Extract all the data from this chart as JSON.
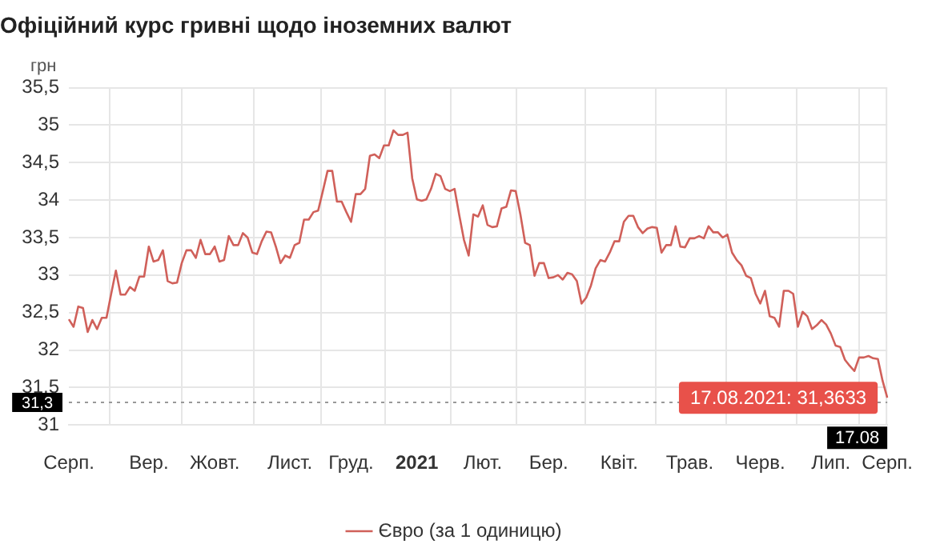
{
  "chart_data": {
    "type": "line",
    "title": "Офіційний курс гривні щодо іноземних валют",
    "ylabel": "грн",
    "categories": [
      "Серп.",
      null,
      null,
      null,
      null,
      null,
      null,
      null,
      null,
      null,
      null,
      null,
      null,
      null,
      null,
      null,
      null,
      "Вер.",
      null,
      null,
      null,
      null,
      null,
      null,
      null,
      null,
      null,
      null,
      null,
      null,
      null,
      "Жовт.",
      null,
      null,
      null,
      null,
      null,
      null,
      null,
      null,
      null,
      null,
      null,
      null,
      null,
      null,
      null,
      "Лист.",
      null,
      null,
      null,
      null,
      null,
      null,
      null,
      null,
      null,
      null,
      null,
      null,
      "Груд.",
      null,
      null,
      null,
      null,
      null,
      null,
      null,
      null,
      null,
      null,
      null,
      null,
      null,
      "2021",
      null,
      null,
      null,
      null,
      null,
      null,
      null,
      null,
      null,
      null,
      null,
      null,
      null,
      "Лют.",
      null,
      null,
      null,
      null,
      null,
      null,
      null,
      null,
      null,
      null,
      null,
      null,
      null,
      "Бер.",
      null,
      null,
      null,
      null,
      null,
      null,
      null,
      null,
      null,
      null,
      null,
      null,
      null,
      null,
      "Квіт.",
      null,
      null,
      null,
      null,
      null,
      null,
      null,
      null,
      null,
      null,
      null,
      null,
      null,
      null,
      "Трав.",
      null,
      null,
      null,
      null,
      null,
      null,
      null,
      null,
      null,
      null,
      null,
      null,
      null,
      null,
      "Черв.",
      null,
      null,
      null,
      null,
      null,
      null,
      null,
      null,
      null,
      null,
      null,
      null,
      null,
      null,
      "Лип.",
      null,
      null,
      null,
      null,
      null,
      null,
      null,
      null,
      null,
      null,
      null,
      "Серп."
    ],
    "series": [
      {
        "name": "Євро (за 1 одиницю)",
        "color": "#d0605a",
        "values": [
          32.41,
          32.31,
          32.58,
          32.56,
          32.24,
          32.4,
          32.28,
          32.43,
          32.43,
          32.75,
          33.06,
          32.74,
          32.74,
          32.84,
          32.79,
          32.98,
          32.98,
          33.38,
          33.18,
          33.2,
          33.33,
          32.92,
          32.89,
          32.9,
          33.16,
          33.33,
          33.33,
          33.23,
          33.47,
          33.28,
          33.28,
          33.38,
          33.18,
          33.2,
          33.52,
          33.4,
          33.4,
          33.56,
          33.5,
          33.3,
          33.28,
          33.45,
          33.58,
          33.57,
          33.38,
          33.16,
          33.26,
          33.23,
          33.4,
          33.43,
          33.74,
          33.74,
          33.84,
          33.86,
          34.12,
          34.39,
          34.39,
          33.98,
          33.98,
          33.84,
          33.71,
          34.08,
          34.08,
          34.15,
          34.59,
          34.61,
          34.56,
          34.73,
          34.73,
          34.93,
          34.87,
          34.87,
          34.9,
          34.29,
          34.01,
          33.99,
          34.01,
          34.15,
          34.35,
          34.32,
          34.15,
          34.12,
          34.15,
          33.8,
          33.47,
          33.26,
          33.81,
          33.78,
          33.93,
          33.67,
          33.64,
          33.65,
          33.89,
          33.91,
          34.13,
          34.12,
          33.81,
          33.43,
          33.4,
          32.99,
          33.16,
          33.16,
          32.96,
          32.97,
          33.0,
          32.94,
          33.03,
          33.01,
          32.92,
          32.62,
          32.7,
          32.86,
          33.09,
          33.2,
          33.18,
          33.3,
          33.45,
          33.45,
          33.71,
          33.79,
          33.79,
          33.64,
          33.56,
          33.62,
          33.64,
          33.63,
          33.3,
          33.4,
          33.4,
          33.65,
          33.38,
          33.37,
          33.49,
          33.49,
          33.52,
          33.49,
          33.65,
          33.57,
          33.57,
          33.5,
          33.54,
          33.3,
          33.2,
          33.13,
          32.99,
          32.96,
          32.75,
          32.62,
          32.79,
          32.45,
          32.43,
          32.31,
          32.79,
          32.79,
          32.75,
          32.31,
          32.51,
          32.45,
          32.28,
          32.33,
          32.4,
          32.34,
          32.22,
          32.06,
          32.04,
          31.87,
          31.79,
          31.72,
          31.9,
          31.9,
          31.92,
          31.89,
          31.88,
          31.59,
          31.3633
        ]
      }
    ],
    "ylim": [
      31,
      35.5
    ],
    "yticks": [
      31,
      {
        "value": 31.5,
        "label": "31,5"
      },
      32,
      {
        "value": 32.5,
        "label": "32,5"
      },
      33,
      {
        "value": 33.5,
        "label": "33,5"
      },
      34,
      {
        "value": 34.5,
        "label": "34,5"
      },
      35,
      {
        "value": 35.5,
        "label": "35,5"
      }
    ],
    "grid": true,
    "legend": "bottom",
    "marker": "none",
    "line_style": "solid",
    "ref_lines": [
      {
        "axis": "y",
        "value": 31.3,
        "label": "31,3",
        "line_style": "dotted"
      }
    ],
    "annotations": [
      "17.08.2021: 31,3633",
      "17.08"
    ]
  }
}
